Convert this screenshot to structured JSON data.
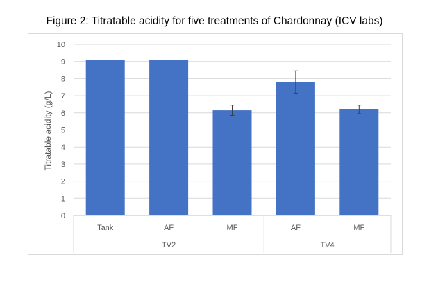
{
  "chart_data": {
    "type": "bar",
    "title": "Figure 2: Titratable acidity for five treatments of Chardonnay (ICV labs)",
    "ylabel": "Titratable acidity (g/L)",
    "xlabel": "",
    "ylim": [
      0,
      10
    ],
    "yticks": [
      0,
      1,
      2,
      3,
      4,
      5,
      6,
      7,
      8,
      9,
      10
    ],
    "grid": true,
    "bar_color": "#4472c4",
    "categories": [
      "Tank",
      "AF",
      "MF",
      "AF",
      "MF"
    ],
    "groups": [
      {
        "label": "TV2",
        "span": 3
      },
      {
        "label": "TV4",
        "span": 2
      }
    ],
    "values": [
      9.1,
      9.1,
      6.15,
      7.8,
      6.2
    ],
    "error_bars": [
      null,
      null,
      {
        "low": 5.85,
        "high": 6.45
      },
      {
        "low": 7.15,
        "high": 8.45
      },
      {
        "low": 5.95,
        "high": 6.45
      }
    ]
  }
}
